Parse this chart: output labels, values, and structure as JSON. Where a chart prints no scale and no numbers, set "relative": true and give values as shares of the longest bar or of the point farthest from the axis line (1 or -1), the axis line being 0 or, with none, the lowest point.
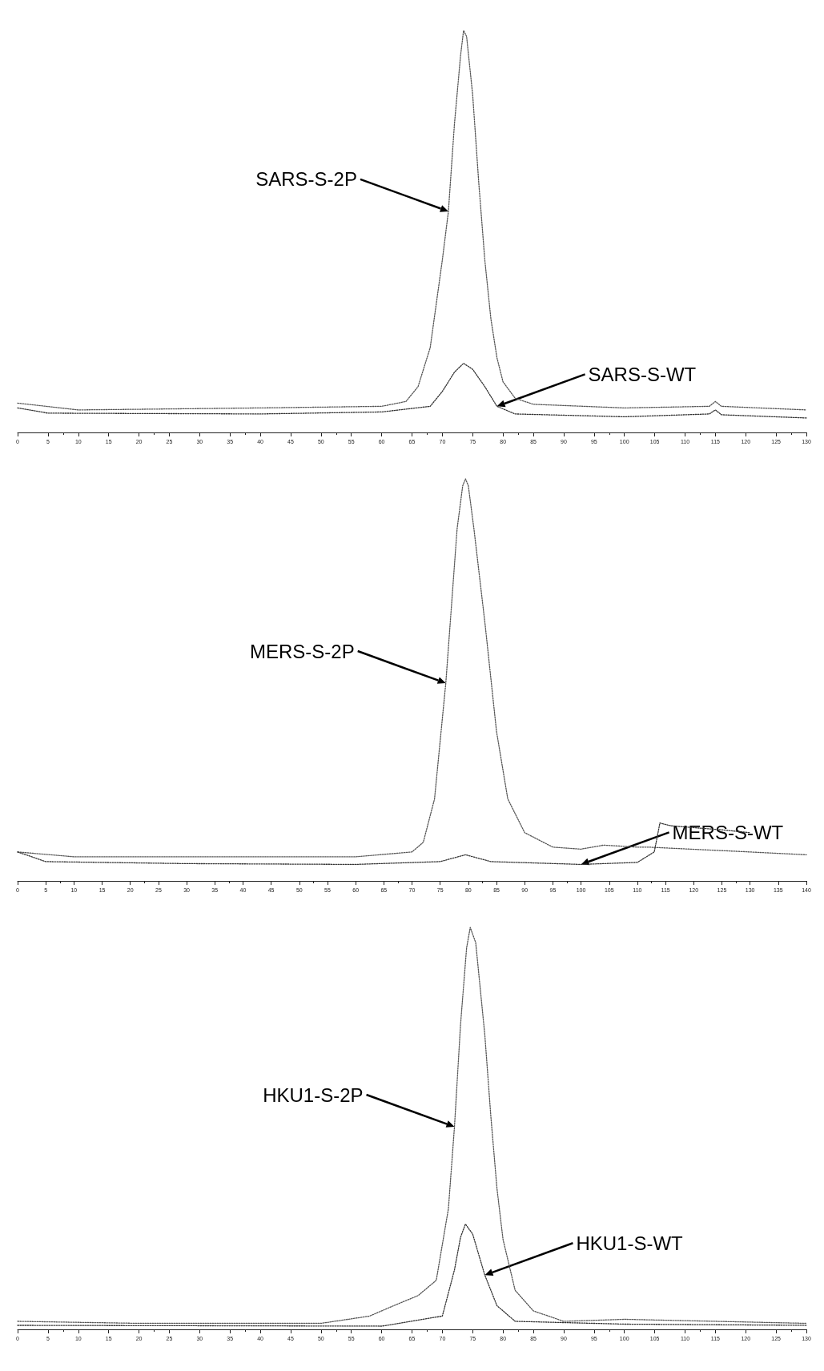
{
  "chart_data": [
    {
      "type": "line",
      "relative": true,
      "line_style": "dotted",
      "marker": "none",
      "grid": false,
      "xlim": [
        0,
        130
      ],
      "xticks": [
        0,
        5,
        10,
        15,
        20,
        25,
        30,
        35,
        40,
        45,
        50,
        55,
        60,
        65,
        70,
        75,
        80,
        85,
        90,
        95,
        100,
        105,
        110,
        115,
        120,
        125,
        130
      ],
      "series": [
        {
          "color": "#555555",
          "x": [
            0,
            10,
            40,
            60,
            64,
            66,
            68,
            70,
            71,
            72,
            73,
            73.5,
            74,
            75,
            76,
            77,
            78,
            79,
            80,
            82,
            85,
            100,
            114,
            115,
            116,
            130
          ],
          "values": [
            0.073,
            0.056,
            0.061,
            0.065,
            0.077,
            0.114,
            0.211,
            0.429,
            0.55,
            0.768,
            0.937,
            1,
            0.985,
            0.84,
            0.622,
            0.429,
            0.283,
            0.186,
            0.126,
            0.085,
            0.07,
            0.061,
            0.065,
            0.077,
            0.065,
            0.056
          ]
        },
        {
          "color": "#333333",
          "x": [
            0,
            5,
            40,
            60,
            68,
            70,
            72,
            73.5,
            75,
            77,
            79,
            82,
            100,
            114,
            115,
            116,
            130
          ],
          "values": [
            0.061,
            0.048,
            0.046,
            0.051,
            0.065,
            0.102,
            0.15,
            0.172,
            0.157,
            0.114,
            0.065,
            0.046,
            0.039,
            0.046,
            0.056,
            0.044,
            0.036
          ]
        }
      ],
      "annotations": [
        "SARS-S-2P",
        "SARS-S-WT"
      ]
    },
    {
      "type": "line",
      "relative": true,
      "line_style": "dotted",
      "marker": "none",
      "grid": false,
      "xlim": [
        0,
        140
      ],
      "xticks": [
        0,
        5,
        10,
        15,
        20,
        25,
        30,
        35,
        40,
        45,
        50,
        55,
        60,
        65,
        70,
        75,
        80,
        85,
        90,
        95,
        100,
        105,
        110,
        115,
        120,
        125,
        130,
        135,
        140
      ],
      "series": [
        {
          "color": "#555555",
          "x": [
            0,
            10,
            60,
            70,
            72,
            74,
            76,
            77,
            78,
            79,
            79.5,
            80,
            81,
            83,
            85,
            87,
            90,
            95,
            100,
            104,
            110,
            112,
            130,
            140
          ],
          "values": [
            0.072,
            0.06,
            0.06,
            0.072,
            0.096,
            0.204,
            0.492,
            0.683,
            0.875,
            0.983,
            1,
            0.983,
            0.875,
            0.635,
            0.372,
            0.204,
            0.12,
            0.084,
            0.079,
            0.089,
            0.084,
            0.084,
            0.072,
            0.065
          ]
        },
        {
          "color": "#333333",
          "x": [
            0,
            5,
            30,
            60,
            75,
            79.5,
            84,
            100,
            110,
            113,
            114,
            116,
            125,
            130
          ],
          "values": [
            0.072,
            0.048,
            0.043,
            0.041,
            0.048,
            0.065,
            0.048,
            0.041,
            0.046,
            0.072,
            0.144,
            0.137,
            0.127,
            0.12
          ]
        }
      ],
      "annotations": [
        "MERS-S-2P",
        "MERS-S-WT"
      ]
    },
    {
      "type": "line",
      "relative": true,
      "line_style": "dotted",
      "marker": "none",
      "grid": false,
      "xlim": [
        0,
        130
      ],
      "xticks": [
        0,
        5,
        10,
        15,
        20,
        25,
        30,
        35,
        40,
        45,
        50,
        55,
        60,
        65,
        70,
        75,
        80,
        85,
        90,
        95,
        100,
        105,
        110,
        115,
        120,
        125,
        130
      ],
      "series": [
        {
          "color": "#555555",
          "x": [
            0,
            20,
            50,
            58,
            62,
            66,
            69,
            71,
            72,
            73,
            74,
            74.6,
            75.5,
            77,
            78,
            79,
            80,
            82,
            85,
            90,
            100,
            130
          ],
          "values": [
            0.02,
            0.015,
            0.015,
            0.033,
            0.059,
            0.084,
            0.122,
            0.3,
            0.504,
            0.758,
            0.949,
            1,
            0.962,
            0.733,
            0.529,
            0.351,
            0.224,
            0.097,
            0.046,
            0.02,
            0.025,
            0.015
          ]
        },
        {
          "color": "#333333",
          "x": [
            0,
            60,
            70,
            72,
            73,
            73.8,
            75,
            77,
            79,
            82,
            100,
            130
          ],
          "values": [
            0.01,
            0.008,
            0.033,
            0.148,
            0.229,
            0.262,
            0.237,
            0.135,
            0.059,
            0.02,
            0.013,
            0.01
          ]
        }
      ],
      "annotations": [
        "HKU1-S-2P",
        "HKU1-S-WT"
      ]
    }
  ]
}
